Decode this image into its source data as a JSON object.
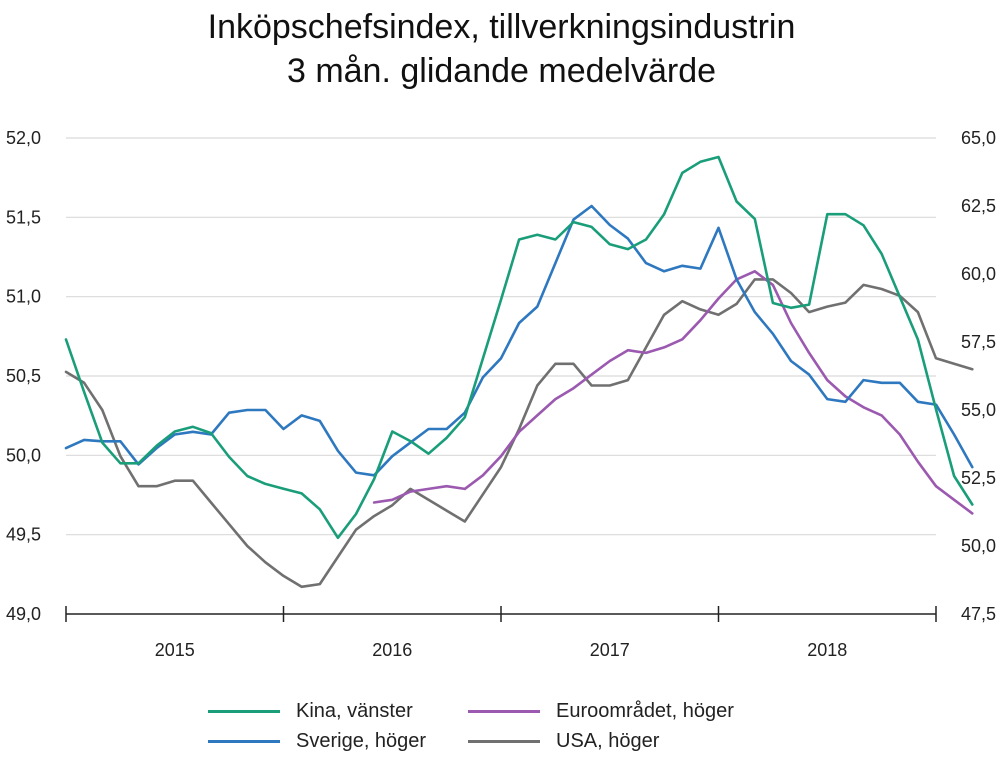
{
  "title": "Inköpschefsindex, tillverkningsindustrin",
  "subtitle": "3 mån. glidande medelvärde",
  "colors": {
    "kina": "#1a9e7a",
    "sverige": "#2e78c0",
    "euro": "#9b59b0",
    "usa": "#707070",
    "grid": "#d9d9d9",
    "axis": "#222222"
  },
  "chart_data": {
    "type": "line",
    "title": "Inköpschefsindex, tillverkningsindustrin",
    "subtitle": "3 mån. glidande medelvärde",
    "x_start": "2015-01",
    "x_categories": [
      "2015",
      "2016",
      "2017",
      "2018"
    ],
    "left_axis": {
      "ylim": [
        49.0,
        52.0
      ],
      "ticks": [
        "49,0",
        "49,5",
        "50,0",
        "50,5",
        "51,0",
        "51,5",
        "52,0"
      ]
    },
    "right_axis": {
      "ylim": [
        47.5,
        65.0
      ],
      "ticks": [
        "47,5",
        "50,0",
        "52,5",
        "55,0",
        "57,5",
        "60,0",
        "62,5",
        "65,0"
      ]
    },
    "grid": true,
    "legend_position": "bottom",
    "series": [
      {
        "name": "Kina, vänster",
        "axis": "left",
        "color_key": "kina",
        "start_index": 0,
        "values": [
          50.73,
          50.4,
          50.08,
          49.95,
          49.95,
          50.06,
          50.15,
          50.18,
          50.14,
          49.99,
          49.87,
          49.82,
          49.79,
          49.76,
          49.66,
          49.48,
          49.63,
          49.85,
          50.15,
          50.09,
          50.01,
          50.11,
          50.24,
          50.61,
          50.98,
          51.36,
          51.39,
          51.36,
          51.47,
          51.44,
          51.33,
          51.3,
          51.36,
          51.52,
          51.78,
          51.85,
          51.88,
          51.6,
          51.49,
          50.96,
          50.93,
          50.95,
          51.52,
          51.52,
          51.45,
          51.27,
          51.0,
          50.73,
          50.29,
          49.87,
          49.69
        ]
      },
      {
        "name": "Sverige, höger",
        "axis": "right",
        "color_key": "sverige",
        "start_index": 0,
        "values": [
          53.6,
          53.9,
          53.85,
          53.85,
          53.0,
          53.6,
          54.1,
          54.2,
          54.1,
          54.9,
          55.0,
          55.0,
          54.3,
          54.8,
          54.6,
          53.5,
          52.7,
          52.6,
          53.3,
          53.8,
          54.3,
          54.3,
          54.9,
          56.2,
          56.9,
          58.2,
          58.8,
          60.4,
          62.0,
          62.5,
          61.8,
          61.3,
          60.4,
          60.1,
          60.3,
          60.2,
          61.7,
          59.8,
          58.6,
          57.8,
          56.8,
          56.3,
          55.4,
          55.3,
          56.1,
          56.0,
          56.0,
          55.3,
          55.2,
          54.1,
          52.9
        ]
      },
      {
        "name": "Euroområdet, höger",
        "axis": "right",
        "color_key": "euro",
        "start_index": 17,
        "values": [
          51.6,
          51.7,
          52.0,
          52.1,
          52.2,
          52.1,
          52.6,
          53.3,
          54.2,
          54.8,
          55.4,
          55.8,
          56.3,
          56.8,
          57.2,
          57.1,
          57.3,
          57.6,
          58.3,
          59.1,
          59.8,
          60.1,
          59.6,
          58.2,
          57.1,
          56.1,
          55.5,
          55.1,
          54.8,
          54.1,
          53.1,
          52.2,
          51.7,
          51.2
        ]
      },
      {
        "name": "USA, höger",
        "axis": "right",
        "color_key": "usa",
        "start_index": 0,
        "values": [
          56.4,
          56.0,
          55.0,
          53.3,
          52.2,
          52.2,
          52.4,
          52.4,
          51.6,
          50.8,
          50.0,
          49.4,
          48.9,
          48.5,
          48.6,
          49.6,
          50.6,
          51.1,
          51.5,
          52.1,
          51.7,
          51.3,
          50.9,
          51.9,
          52.9,
          54.3,
          55.9,
          56.7,
          56.7,
          55.9,
          55.9,
          56.1,
          57.3,
          58.5,
          59.0,
          58.7,
          58.5,
          58.9,
          59.8,
          59.8,
          59.3,
          58.6,
          58.8,
          58.95,
          59.6,
          59.45,
          59.2,
          58.6,
          56.9,
          56.7,
          56.5
        ]
      }
    ]
  }
}
